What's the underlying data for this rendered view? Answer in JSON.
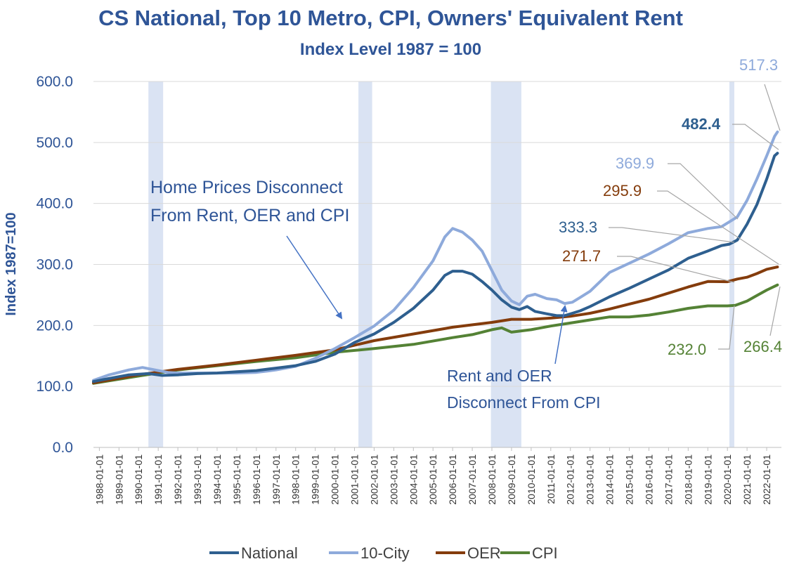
{
  "chart_data": {
    "type": "line",
    "title": "CS National, Top 10 Metro, CPI, Owners' Equivalent Rent",
    "subtitle": "Index Level 1987 = 100",
    "ylabel": "Index 1987=100",
    "xlabel": "",
    "ylim": [
      0,
      600
    ],
    "yticks": [
      0,
      100,
      200,
      300,
      400,
      500,
      600
    ],
    "ytick_labels": [
      "0.0",
      "100.0",
      "200.0",
      "300.0",
      "400.0",
      "500.0",
      "600.0"
    ],
    "xlim": [
      1987.7,
      2022.75
    ],
    "xtick_labels": [
      "1988-01-01",
      "1989-01-01",
      "1990-01-01",
      "1991-01-01",
      "1992-01-01",
      "1993-01-01",
      "1994-01-01",
      "1995-01-01",
      "1996-01-01",
      "1997-01-01",
      "1998-01-01",
      "1999-01-01",
      "2000-01-01",
      "2001-01-01",
      "2002-01-01",
      "2003-01-01",
      "2004-01-01",
      "2005-01-01",
      "2006-01-01",
      "2007-01-01",
      "2008-01-01",
      "2009-01-01",
      "2010-01-01",
      "2011-01-01",
      "2012-01-01",
      "2013-01-01",
      "2014-01-01",
      "2015-01-01",
      "2016-01-01",
      "2017-01-01",
      "2018-01-01",
      "2019-01-01",
      "2020-01-01",
      "2021-01-01",
      "2022-01-01"
    ],
    "recessions": [
      [
        1990.5,
        1991.25
      ],
      [
        2001.2,
        2001.9
      ],
      [
        2007.95,
        2009.5
      ],
      [
        2020.1,
        2020.35
      ]
    ],
    "series": [
      {
        "name": "National",
        "color": "#2e5f8f",
        "x": [
          1987.7,
          1988.5,
          1989.5,
          1990.5,
          1991.2,
          1992,
          1993,
          1994,
          1995,
          1996,
          1997,
          1998,
          1999,
          2000,
          2001,
          2002,
          2003,
          2004,
          2005,
          2005.6,
          2006.0,
          2006.5,
          2007,
          2007.5,
          2008,
          2008.5,
          2009,
          2009.4,
          2009.8,
          2010.2,
          2010.8,
          2011.3,
          2011.7,
          2012.1,
          2012.5,
          2013,
          2014,
          2015,
          2016,
          2017,
          2018,
          2019,
          2019.7,
          2020.1,
          2020.5,
          2021,
          2021.5,
          2022,
          2022.4,
          2022.55
        ],
        "y": [
          108,
          113,
          119,
          121,
          118,
          119,
          121,
          122,
          124,
          126,
          130,
          134,
          141,
          153,
          172,
          186,
          205,
          228,
          258,
          282,
          289,
          289,
          284,
          272,
          258,
          242,
          230,
          226,
          231,
          223,
          219,
          216,
          216,
          220,
          224,
          231,
          247,
          261,
          276,
          291,
          310,
          322,
          331,
          333.3,
          340,
          366,
          398,
          440,
          478,
          482.4
        ]
      },
      {
        "name": "10-City",
        "color": "#8eaadb",
        "x": [
          1987.7,
          1988.5,
          1989.5,
          1990.2,
          1991,
          1991.5,
          1992,
          1993,
          1994,
          1995,
          1996,
          1997,
          1998,
          1999,
          2000,
          2001,
          2002,
          2003,
          2004,
          2005,
          2005.6,
          2006.0,
          2006.5,
          2007,
          2007.5,
          2008,
          2008.5,
          2009,
          2009.4,
          2009.8,
          2010.2,
          2010.8,
          2011.3,
          2011.7,
          2012.1,
          2012.5,
          2013,
          2014,
          2015,
          2016,
          2017,
          2018,
          2019,
          2019.7,
          2020.1,
          2020.5,
          2021,
          2021.5,
          2022,
          2022.4,
          2022.55
        ],
        "y": [
          110,
          119,
          127,
          131,
          126,
          123,
          122,
          122,
          122,
          122,
          123,
          127,
          133,
          146,
          162,
          180,
          199,
          225,
          262,
          306,
          345,
          359,
          353,
          340,
          322,
          290,
          258,
          240,
          234,
          248,
          251,
          244,
          242,
          236,
          238,
          246,
          256,
          287,
          302,
          317,
          334,
          352,
          359,
          362,
          369.9,
          378,
          405,
          440,
          478,
          510,
          517.3
        ]
      },
      {
        "name": "OER",
        "color": "#843c0c",
        "x": [
          1987.7,
          1990,
          1992,
          1994,
          1996,
          1998,
          2000,
          2002,
          2004,
          2006,
          2008,
          2009,
          2010,
          2011,
          2012,
          2013,
          2014,
          2015,
          2016,
          2017,
          2018,
          2019,
          2020,
          2020.5,
          2021,
          2021.5,
          2022,
          2022.55
        ],
        "y": [
          106,
          119,
          128,
          135,
          143,
          151,
          160,
          175,
          186,
          197,
          205,
          210,
          210,
          212,
          215,
          220,
          227,
          235,
          243,
          253,
          263,
          272,
          271.7,
          276,
          279,
          285,
          292,
          295.9
        ]
      },
      {
        "name": "CPI",
        "color": "#548235",
        "x": [
          1987.7,
          1990,
          1992,
          1994,
          1996,
          1998,
          2000,
          2002,
          2004,
          2006,
          2007,
          2008,
          2008.5,
          2009,
          2010,
          2011,
          2012,
          2013,
          2014,
          2015,
          2016,
          2017,
          2018,
          2019,
          2020,
          2020.4,
          2021,
          2021.5,
          2022,
          2022.55
        ],
        "y": [
          105,
          117,
          127,
          134,
          141,
          147,
          156,
          162,
          169,
          180,
          185,
          193,
          196,
          189,
          193,
          199,
          204,
          209,
          214,
          214,
          217,
          222,
          228,
          232,
          232.0,
          233,
          240,
          249,
          258,
          266.4
        ]
      }
    ],
    "data_labels": [
      {
        "text": "517.3",
        "series": "10-City",
        "color": "#8eaadb"
      },
      {
        "text": "482.4",
        "series": "National",
        "color": "#2e5f8f"
      },
      {
        "text": "369.9",
        "series": "10-City",
        "color": "#8eaadb"
      },
      {
        "text": "295.9",
        "series": "OER",
        "color": "#843c0c"
      },
      {
        "text": "333.3",
        "series": "National",
        "color": "#2e5f8f"
      },
      {
        "text": "271.7",
        "series": "OER",
        "color": "#843c0c"
      },
      {
        "text": "232.0",
        "series": "CPI",
        "color": "#548235"
      },
      {
        "text": "266.4",
        "series": "CPI",
        "color": "#548235"
      }
    ],
    "annotations": {
      "home_prices_line1": "Home Prices Disconnect",
      "home_prices_line2": "From Rent, OER and CPI",
      "rent_oer_line1": "Rent and OER",
      "rent_oer_line2": "Disconnect From CPI"
    },
    "legend": {
      "position": "bottom",
      "items": [
        "National",
        "10-City",
        "OER",
        "CPI"
      ]
    }
  }
}
